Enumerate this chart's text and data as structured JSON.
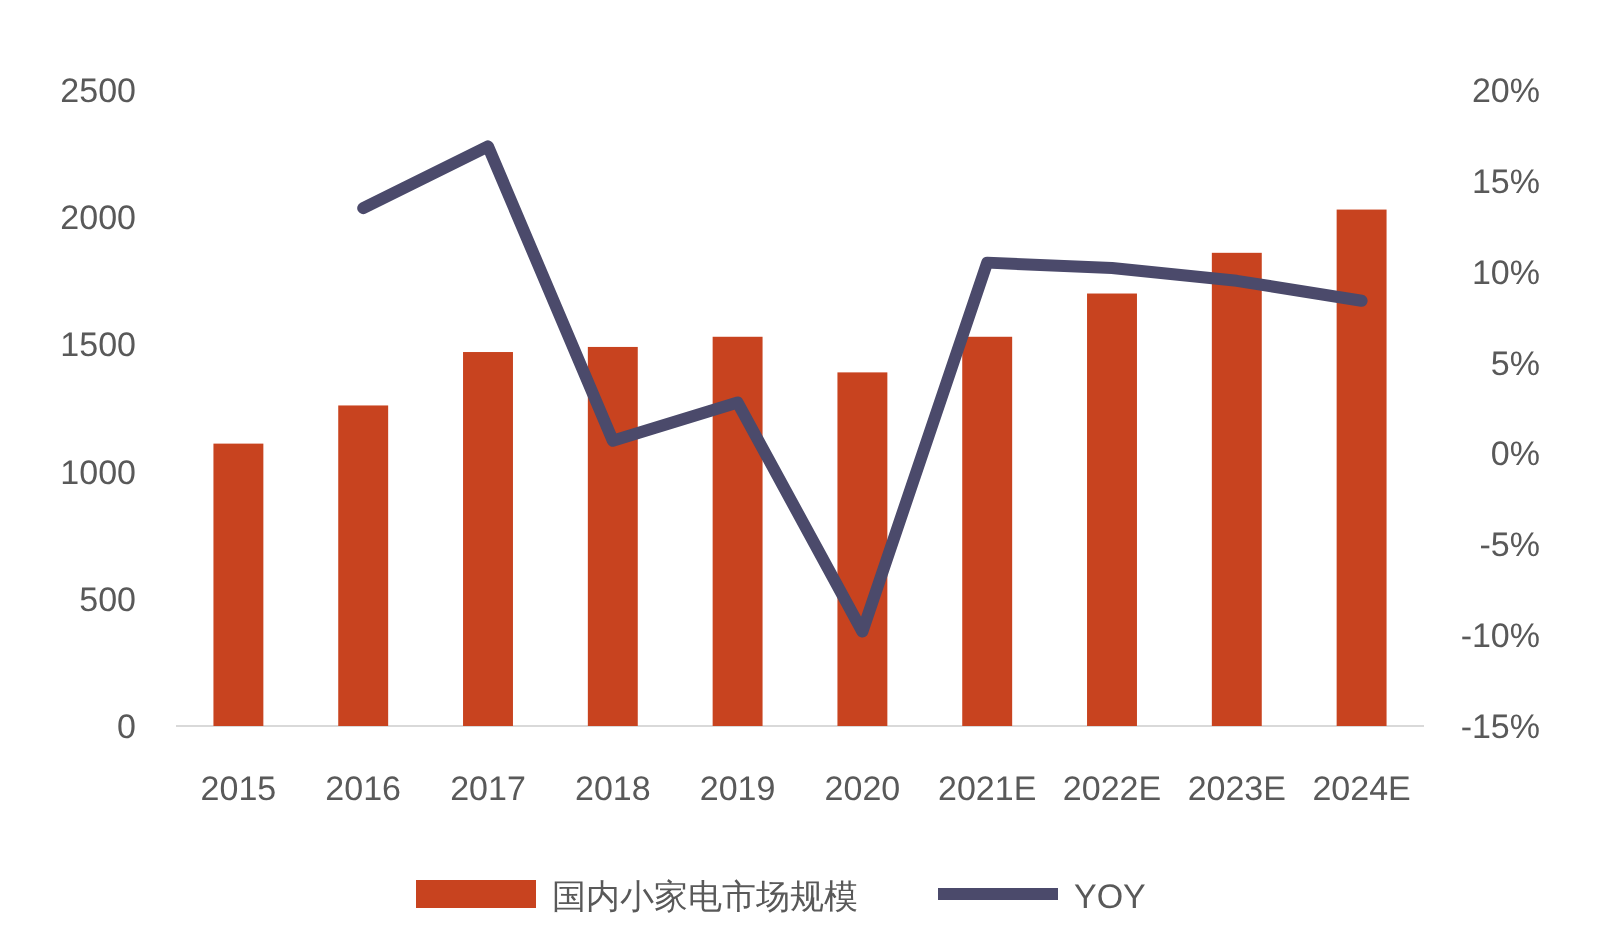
{
  "chart_data": {
    "type": "bar",
    "categories": [
      "2015",
      "2016",
      "2017",
      "2018",
      "2019",
      "2020",
      "2021E",
      "2022E",
      "2023E",
      "2024E"
    ],
    "series": [
      {
        "name": "国内小家电市场规模",
        "color": "#c8431f",
        "values": [
          1110,
          1260,
          1470,
          1490,
          1530,
          1390,
          1530,
          1700,
          1860,
          2030
        ]
      },
      {
        "name": "YOY",
        "type": "line",
        "axis": "y2",
        "color": "#4b4a6b",
        "values": [
          null,
          13.5,
          16.9,
          0.7,
          2.8,
          -9.8,
          10.5,
          10.2,
          9.5,
          8.4
        ]
      }
    ],
    "ylim": [
      0,
      2500
    ],
    "yticks": [
      0,
      500,
      1000,
      1500,
      2000,
      2500
    ],
    "y2lim": [
      -15,
      20
    ],
    "y2ticks": [
      {
        "value": -15,
        "label": "-15%"
      },
      {
        "value": -10,
        "label": "-10%"
      },
      {
        "value": -5,
        "label": "-5%"
      },
      {
        "value": 0,
        "label": "0%"
      },
      {
        "value": 5,
        "label": "5%"
      },
      {
        "value": 10,
        "label": "10%"
      },
      {
        "value": 15,
        "label": "15%"
      },
      {
        "value": 20,
        "label": "20%"
      }
    ],
    "legend": "bottom",
    "grid": false
  }
}
